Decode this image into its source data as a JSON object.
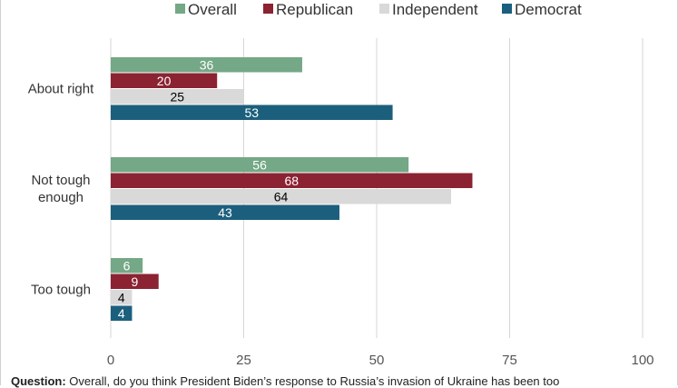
{
  "chart_data": {
    "type": "bar",
    "orientation": "horizontal",
    "categories": [
      "About right",
      "Not tough enough",
      "Too tough"
    ],
    "category_lines": [
      [
        "About right"
      ],
      [
        "Not tough",
        "enough"
      ],
      [
        "Too tough"
      ]
    ],
    "series": [
      {
        "name": "Overall",
        "color": "#74a886",
        "label_color": "#ffffff",
        "values": [
          36,
          56,
          6
        ]
      },
      {
        "name": "Republican",
        "color": "#8b2332",
        "label_color": "#ffffff",
        "values": [
          20,
          68,
          9
        ]
      },
      {
        "name": "Independent",
        "color": "#d9d9d9",
        "label_color": "#000000",
        "values": [
          25,
          64,
          4
        ]
      },
      {
        "name": "Democrat",
        "color": "#1b5f7d",
        "label_color": "#ffffff",
        "values": [
          53,
          43,
          4
        ]
      }
    ],
    "xlim": [
      0,
      100
    ],
    "xticks": [
      0,
      25,
      50,
      75,
      100
    ],
    "grid": true,
    "legend_position": "top"
  },
  "question": {
    "label": "Question:",
    "text": "Overall, do you think President Biden’s response to Russia’s invasion of Ukraine has been too"
  }
}
